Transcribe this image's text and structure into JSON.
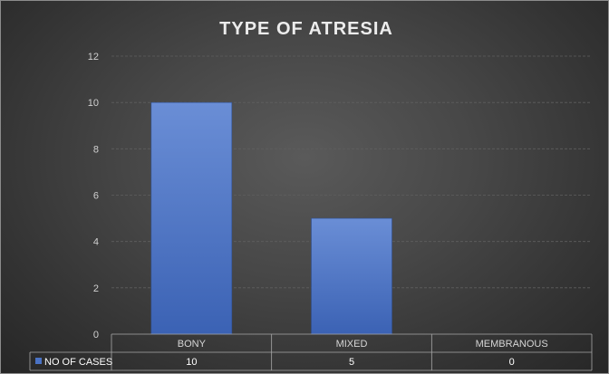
{
  "chart_data": {
    "type": "bar",
    "title": "TYPE OF ATRESIA",
    "categories": [
      "BONY",
      "MIXED",
      "MEMBRANOUS"
    ],
    "series": [
      {
        "name": "NO OF CASES",
        "values": [
          10,
          5,
          0
        ],
        "color": "#4a72c4"
      }
    ],
    "ylim": [
      0,
      12
    ],
    "yticks": [
      0,
      2,
      4,
      6,
      8,
      10,
      12
    ],
    "data_table": true,
    "grid": true,
    "colors": {
      "background": "#3c3c3c",
      "bar": "#4a72c4",
      "text": "#ececec"
    }
  }
}
